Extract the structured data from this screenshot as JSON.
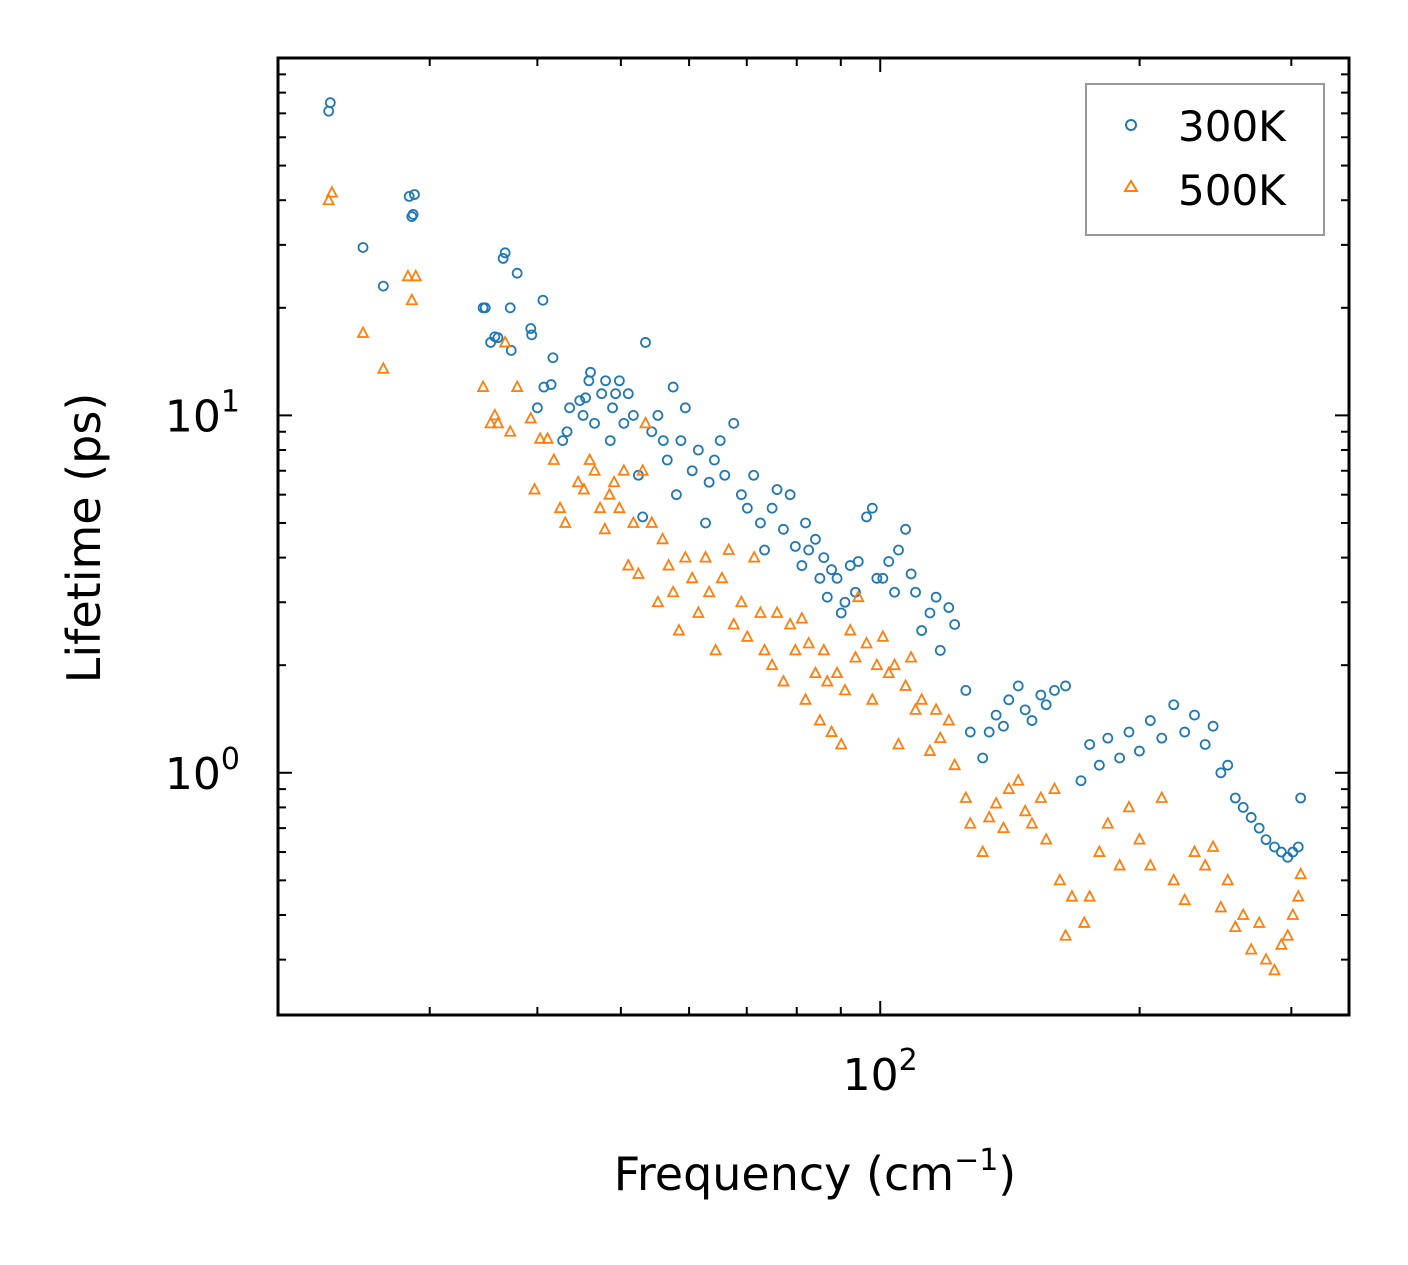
{
  "chart_data": {
    "type": "scatter",
    "title": "",
    "xlabel": "Frequency (cm",
    "xlabel_sup": "−1",
    "xlabel_end": ")",
    "ylabel": "Lifetime (ps)",
    "xscale": "log",
    "yscale": "log",
    "xlim": [
      20,
      350
    ],
    "ylim": [
      0.21,
      100
    ],
    "x_tick_labels": [
      {
        "value": 100,
        "base": "10",
        "exp": "2"
      }
    ],
    "y_tick_labels": [
      {
        "value": 1,
        "base": "10",
        "exp": "0"
      },
      {
        "value": 10,
        "base": "10",
        "exp": "1"
      }
    ],
    "legend": {
      "position": "top-right"
    },
    "series": [
      {
        "name": "300K",
        "color": "#1f77b4",
        "marker": "circle",
        "points": [
          [
            22.9,
            71
          ],
          [
            23.0,
            75
          ],
          [
            25.1,
            29.5
          ],
          [
            26.5,
            23
          ],
          [
            28.4,
            41
          ],
          [
            28.8,
            41.5
          ],
          [
            28.6,
            36
          ],
          [
            28.7,
            36.5
          ],
          [
            34.6,
            20
          ],
          [
            34.8,
            20
          ],
          [
            35.3,
            16
          ],
          [
            35.7,
            16.6
          ],
          [
            36.0,
            16.5
          ],
          [
            36.5,
            27.5
          ],
          [
            36.7,
            28.5
          ],
          [
            37.2,
            20
          ],
          [
            37.3,
            15.2
          ],
          [
            37.9,
            25
          ],
          [
            39.3,
            17.5
          ],
          [
            39.4,
            16.8
          ],
          [
            40.0,
            10.5
          ],
          [
            40.6,
            21
          ],
          [
            40.7,
            12
          ],
          [
            41.5,
            12.2
          ],
          [
            41.7,
            14.5
          ],
          [
            42.8,
            8.5
          ],
          [
            43.3,
            9
          ],
          [
            43.6,
            10.5
          ],
          [
            44.8,
            11
          ],
          [
            45.2,
            10
          ],
          [
            45.5,
            11.2
          ],
          [
            45.9,
            12.5
          ],
          [
            46.1,
            13.2
          ],
          [
            46.6,
            9.5
          ],
          [
            47.5,
            11.5
          ],
          [
            48.0,
            12.5
          ],
          [
            48.6,
            8.5
          ],
          [
            48.9,
            10.5
          ],
          [
            49.3,
            11.5
          ],
          [
            49.8,
            12.5
          ],
          [
            50.4,
            9.5
          ],
          [
            51.0,
            11.5
          ],
          [
            51.7,
            10
          ],
          [
            52.4,
            6.8
          ],
          [
            53.0,
            5.2
          ],
          [
            53.4,
            16
          ],
          [
            54.3,
            9
          ],
          [
            55.2,
            10
          ],
          [
            56.0,
            8.5
          ],
          [
            56.6,
            7.5
          ],
          [
            57.5,
            12
          ],
          [
            58.0,
            6
          ],
          [
            58.7,
            8.5
          ],
          [
            59.4,
            10.5
          ],
          [
            60.5,
            7
          ],
          [
            61.5,
            8
          ],
          [
            62.7,
            5
          ],
          [
            63.3,
            6.5
          ],
          [
            64.2,
            7.5
          ],
          [
            65.2,
            8.5
          ],
          [
            66.0,
            6.8
          ],
          [
            67.6,
            9.5
          ],
          [
            69.0,
            6
          ],
          [
            70.1,
            5.5
          ],
          [
            71.3,
            6.8
          ],
          [
            72.6,
            5
          ],
          [
            73.4,
            4.2
          ],
          [
            74.9,
            5.5
          ],
          [
            75.9,
            6.2
          ],
          [
            77.2,
            4.8
          ],
          [
            78.6,
            6
          ],
          [
            79.7,
            4.3
          ],
          [
            81.1,
            3.8
          ],
          [
            81.9,
            5
          ],
          [
            82.6,
            4.2
          ],
          [
            84.1,
            4.5
          ],
          [
            85.1,
            3.5
          ],
          [
            86.0,
            4
          ],
          [
            86.8,
            3.1
          ],
          [
            87.8,
            3.7
          ],
          [
            89.1,
            3.5
          ],
          [
            90.1,
            2.8
          ],
          [
            91.0,
            3
          ],
          [
            92.3,
            3.8
          ],
          [
            93.6,
            3.2
          ],
          [
            94.3,
            3.9
          ],
          [
            96.4,
            5.2
          ],
          [
            97.9,
            5.5
          ],
          [
            99.1,
            3.5
          ],
          [
            100.7,
            3.5
          ],
          [
            102.3,
            3.9
          ],
          [
            103.9,
            3.2
          ],
          [
            105.0,
            4.2
          ],
          [
            107.0,
            4.8
          ],
          [
            108.6,
            3.6
          ],
          [
            109.9,
            3.2
          ],
          [
            111.7,
            2.5
          ],
          [
            114.2,
            2.8
          ],
          [
            116.1,
            3.1
          ],
          [
            117.4,
            2.2
          ],
          [
            120.1,
            2.9
          ],
          [
            122.0,
            2.6
          ],
          [
            125.7,
            1.7
          ],
          [
            127.2,
            1.3
          ],
          [
            131.5,
            1.1
          ],
          [
            133.8,
            1.3
          ],
          [
            136.3,
            1.45
          ],
          [
            139.0,
            1.35
          ],
          [
            141.0,
            1.6
          ],
          [
            144.6,
            1.75
          ],
          [
            147.3,
            1.5
          ],
          [
            150.0,
            1.4
          ],
          [
            153.6,
            1.65
          ],
          [
            155.8,
            1.55
          ],
          [
            159.3,
            1.7
          ],
          [
            164.1,
            1.75
          ],
          [
            171.0,
            0.95
          ],
          [
            175.0,
            1.2
          ],
          [
            179.6,
            1.05
          ],
          [
            183.7,
            1.25
          ],
          [
            189.6,
            1.1
          ],
          [
            194.4,
            1.3
          ],
          [
            199.9,
            1.15
          ],
          [
            205.8,
            1.4
          ],
          [
            212.2,
            1.25
          ],
          [
            219.1,
            1.55
          ],
          [
            225.6,
            1.3
          ],
          [
            231.6,
            1.45
          ],
          [
            238.3,
            1.2
          ],
          [
            243.4,
            1.35
          ],
          [
            248.5,
            1.0
          ],
          [
            253.1,
            1.05
          ],
          [
            258.3,
            0.85
          ],
          [
            263.8,
            0.8
          ],
          [
            269.5,
            0.75
          ],
          [
            275.3,
            0.7
          ],
          [
            280.4,
            0.65
          ],
          [
            286.8,
            0.62
          ],
          [
            292.1,
            0.6
          ],
          [
            297.1,
            0.58
          ],
          [
            301.2,
            0.6
          ],
          [
            305.6,
            0.62
          ],
          [
            307.6,
            0.85
          ]
        ]
      },
      {
        "name": "500K",
        "color": "#ff7f0e",
        "marker": "triangle",
        "points": [
          [
            22.9,
            40
          ],
          [
            23.1,
            42
          ],
          [
            25.1,
            17
          ],
          [
            26.5,
            13.5
          ],
          [
            28.3,
            24.5
          ],
          [
            28.9,
            24.5
          ],
          [
            28.6,
            21
          ],
          [
            34.6,
            12
          ],
          [
            35.3,
            9.5
          ],
          [
            35.7,
            10
          ],
          [
            36.0,
            9.5
          ],
          [
            36.7,
            16
          ],
          [
            37.2,
            9
          ],
          [
            37.9,
            12
          ],
          [
            39.3,
            9.8
          ],
          [
            39.7,
            6.2
          ],
          [
            40.3,
            8.6
          ],
          [
            41.1,
            8.6
          ],
          [
            41.8,
            7.5
          ],
          [
            42.5,
            5.5
          ],
          [
            43.1,
            5
          ],
          [
            44.6,
            6.5
          ],
          [
            45.3,
            6.2
          ],
          [
            46.0,
            7.5
          ],
          [
            46.6,
            7
          ],
          [
            47.3,
            5.5
          ],
          [
            47.9,
            4.8
          ],
          [
            48.5,
            6
          ],
          [
            49.1,
            6.5
          ],
          [
            49.8,
            5.5
          ],
          [
            50.4,
            7
          ],
          [
            51.0,
            3.8
          ],
          [
            51.7,
            5
          ],
          [
            52.4,
            3.6
          ],
          [
            53.0,
            7
          ],
          [
            53.4,
            9.5
          ],
          [
            54.3,
            5
          ],
          [
            55.2,
            3
          ],
          [
            55.9,
            4.5
          ],
          [
            56.8,
            3.8
          ],
          [
            57.5,
            3.2
          ],
          [
            58.4,
            2.5
          ],
          [
            59.4,
            4
          ],
          [
            60.5,
            3.5
          ],
          [
            61.5,
            2.8
          ],
          [
            62.7,
            4
          ],
          [
            63.3,
            3.2
          ],
          [
            64.4,
            2.2
          ],
          [
            65.5,
            3.5
          ],
          [
            66.7,
            4.2
          ],
          [
            67.6,
            2.6
          ],
          [
            69.0,
            3
          ],
          [
            70.1,
            2.4
          ],
          [
            71.4,
            4
          ],
          [
            72.6,
            2.8
          ],
          [
            73.4,
            2.2
          ],
          [
            74.9,
            2
          ],
          [
            75.9,
            2.8
          ],
          [
            77.2,
            1.8
          ],
          [
            78.6,
            2.6
          ],
          [
            79.7,
            2.2
          ],
          [
            81.1,
            2.7
          ],
          [
            81.9,
            1.6
          ],
          [
            82.6,
            2.3
          ],
          [
            84.1,
            1.9
          ],
          [
            85.1,
            1.4
          ],
          [
            86.0,
            2.2
          ],
          [
            86.8,
            1.8
          ],
          [
            87.8,
            1.3
          ],
          [
            89.1,
            1.9
          ],
          [
            90.1,
            1.2
          ],
          [
            91.0,
            1.7
          ],
          [
            92.3,
            2.5
          ],
          [
            93.6,
            2.1
          ],
          [
            94.3,
            3.1
          ],
          [
            96.4,
            2.3
          ],
          [
            97.9,
            1.6
          ],
          [
            99.1,
            2
          ],
          [
            100.7,
            2.4
          ],
          [
            102.3,
            1.9
          ],
          [
            103.9,
            2
          ],
          [
            105.0,
            1.2
          ],
          [
            107.0,
            1.75
          ],
          [
            108.6,
            2.1
          ],
          [
            109.9,
            1.5
          ],
          [
            111.7,
            1.6
          ],
          [
            114.2,
            1.15
          ],
          [
            116.1,
            1.5
          ],
          [
            117.4,
            1.25
          ],
          [
            120.1,
            1.4
          ],
          [
            122.0,
            1.05
          ],
          [
            125.7,
            0.85
          ],
          [
            127.2,
            0.72
          ],
          [
            131.5,
            0.6
          ],
          [
            133.8,
            0.75
          ],
          [
            136.3,
            0.82
          ],
          [
            139.0,
            0.7
          ],
          [
            141.0,
            0.9
          ],
          [
            144.6,
            0.95
          ],
          [
            147.3,
            0.78
          ],
          [
            150.0,
            0.72
          ],
          [
            153.6,
            0.85
          ],
          [
            155.8,
            0.65
          ],
          [
            159.3,
            0.9
          ],
          [
            161.6,
            0.5
          ],
          [
            164.1,
            0.35
          ],
          [
            166.9,
            0.45
          ],
          [
            172.5,
            0.38
          ],
          [
            175.0,
            0.45
          ],
          [
            179.6,
            0.6
          ],
          [
            183.7,
            0.72
          ],
          [
            189.6,
            0.55
          ],
          [
            194.4,
            0.8
          ],
          [
            199.9,
            0.65
          ],
          [
            205.8,
            0.55
          ],
          [
            212.2,
            0.85
          ],
          [
            219.1,
            0.5
          ],
          [
            225.6,
            0.44
          ],
          [
            231.6,
            0.6
          ],
          [
            238.3,
            0.55
          ],
          [
            243.4,
            0.62
          ],
          [
            248.5,
            0.42
          ],
          [
            253.1,
            0.5
          ],
          [
            258.3,
            0.37
          ],
          [
            263.8,
            0.4
          ],
          [
            269.5,
            0.32
          ],
          [
            275.3,
            0.38
          ],
          [
            280.4,
            0.3
          ],
          [
            286.8,
            0.28
          ],
          [
            292.1,
            0.33
          ],
          [
            297.1,
            0.35
          ],
          [
            301.2,
            0.4
          ],
          [
            305.6,
            0.45
          ],
          [
            307.6,
            0.52
          ]
        ]
      }
    ]
  }
}
